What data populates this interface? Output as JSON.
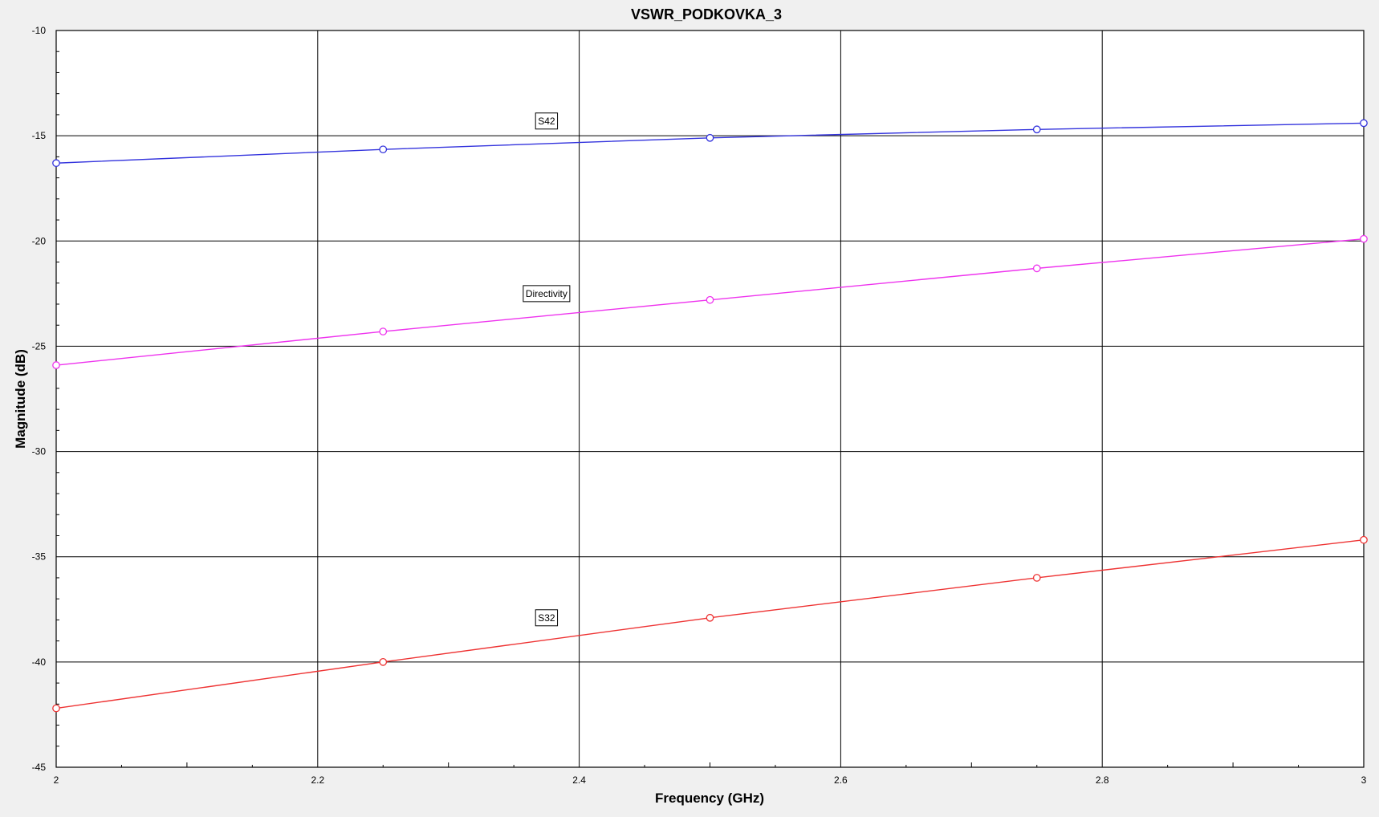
{
  "chart_data": {
    "type": "line",
    "title": "VSWR_PODKOVKA_3",
    "xlabel": "Frequency (GHz)",
    "ylabel": "Magnitude (dB)",
    "xlim": [
      2,
      3
    ],
    "ylim": [
      -45,
      -10
    ],
    "x_ticks": [
      "2",
      "2.2",
      "2.4",
      "2.6",
      "2.8",
      "3"
    ],
    "y_ticks": [
      "-10",
      "-15",
      "-20",
      "-25",
      "-30",
      "-35",
      "-40",
      "-45"
    ],
    "grid": true,
    "x": [
      2.0,
      2.25,
      2.5,
      2.75,
      3.0
    ],
    "series": [
      {
        "name": "S42",
        "color": "#3333dd",
        "values": [
          -16.3,
          -15.65,
          -15.1,
          -14.7,
          -14.4
        ]
      },
      {
        "name": "Directivity",
        "color": "#ee33ee",
        "values": [
          -25.9,
          -24.3,
          -22.8,
          -21.3,
          -19.9
        ]
      },
      {
        "name": "S32",
        "color": "#ee3333",
        "values": [
          -42.2,
          -40.0,
          -37.9,
          -36.0,
          -34.2
        ]
      }
    ]
  }
}
